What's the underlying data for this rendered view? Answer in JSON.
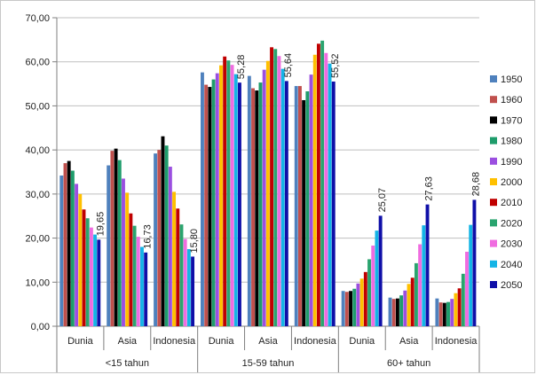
{
  "chart_data": {
    "type": "bar",
    "title": "",
    "xlabel": "",
    "ylabel": "",
    "ylim": [
      0,
      70
    ],
    "y_ticks": [
      "0,00",
      "10,00",
      "20,00",
      "30,00",
      "40,00",
      "50,00",
      "60,00",
      "70,00"
    ],
    "grid": true,
    "legend_position": "right",
    "groups": [
      {
        "label": "<15 tahun",
        "categories": [
          "Dunia",
          "Asia",
          "Indonesia"
        ]
      },
      {
        "label": "15-59 tahun",
        "categories": [
          "Dunia",
          "Asia",
          "Indonesia"
        ]
      },
      {
        "label": "60+ tahun",
        "categories": [
          "Dunia",
          "Asia",
          "Indonesia"
        ]
      }
    ],
    "categories": [
      "Dunia",
      "Asia",
      "Indonesia",
      "Dunia",
      "Asia",
      "Indonesia",
      "Dunia",
      "Asia",
      "Indonesia"
    ],
    "series": [
      {
        "name": "1950",
        "color": "#4f81bd",
        "values": [
          34.2,
          36.5,
          39.2,
          57.6,
          56.8,
          54.5,
          8.0,
          6.5,
          6.3
        ]
      },
      {
        "name": "1960",
        "color": "#c0504d",
        "values": [
          37.0,
          39.8,
          40.0,
          54.8,
          54.0,
          54.5,
          7.8,
          6.2,
          5.4
        ]
      },
      {
        "name": "1970",
        "color": "#000000",
        "values": [
          37.5,
          40.3,
          43.1,
          54.3,
          53.5,
          51.3,
          8.0,
          6.3,
          5.3
        ]
      },
      {
        "name": "1980",
        "color": "#1e9c6b",
        "values": [
          35.3,
          37.7,
          41.0,
          56.0,
          55.3,
          53.3,
          8.5,
          7.0,
          5.5
        ]
      },
      {
        "name": "1990",
        "color": "#9b4fe0",
        "values": [
          32.3,
          33.5,
          36.2,
          57.4,
          58.2,
          57.1,
          9.7,
          8.1,
          6.2
        ]
      },
      {
        "name": "2000",
        "color": "#ffc000",
        "values": [
          30.0,
          30.3,
          30.5,
          59.2,
          60.2,
          61.6,
          10.8,
          9.6,
          7.5
        ]
      },
      {
        "name": "2010",
        "color": "#c00000",
        "values": [
          26.5,
          25.6,
          26.7,
          61.2,
          63.3,
          64.1,
          12.3,
          11.0,
          8.6
        ]
      },
      {
        "name": "2020",
        "color": "#2aa46f",
        "values": [
          24.5,
          22.8,
          23.1,
          60.3,
          62.9,
          64.8,
          15.2,
          14.3,
          11.9
        ]
      },
      {
        "name": "2030",
        "color": "#f06ce0",
        "values": [
          22.4,
          20.3,
          19.8,
          59.3,
          61.3,
          62.0,
          18.3,
          18.6,
          16.9
        ]
      },
      {
        "name": "2040",
        "color": "#14b4e6",
        "values": [
          20.8,
          18.0,
          17.5,
          57.2,
          58.4,
          59.6,
          21.7,
          22.9,
          23.0
        ]
      },
      {
        "name": "2050",
        "color": "#0f0fa8",
        "values": [
          19.65,
          16.73,
          15.8,
          55.28,
          55.64,
          55.52,
          25.07,
          27.63,
          28.68
        ]
      }
    ],
    "data_labels": [
      "19,65",
      "16,73",
      "15,80",
      "55,28",
      "55,64",
      "55,52",
      "25,07",
      "27,63",
      "28,68"
    ]
  }
}
